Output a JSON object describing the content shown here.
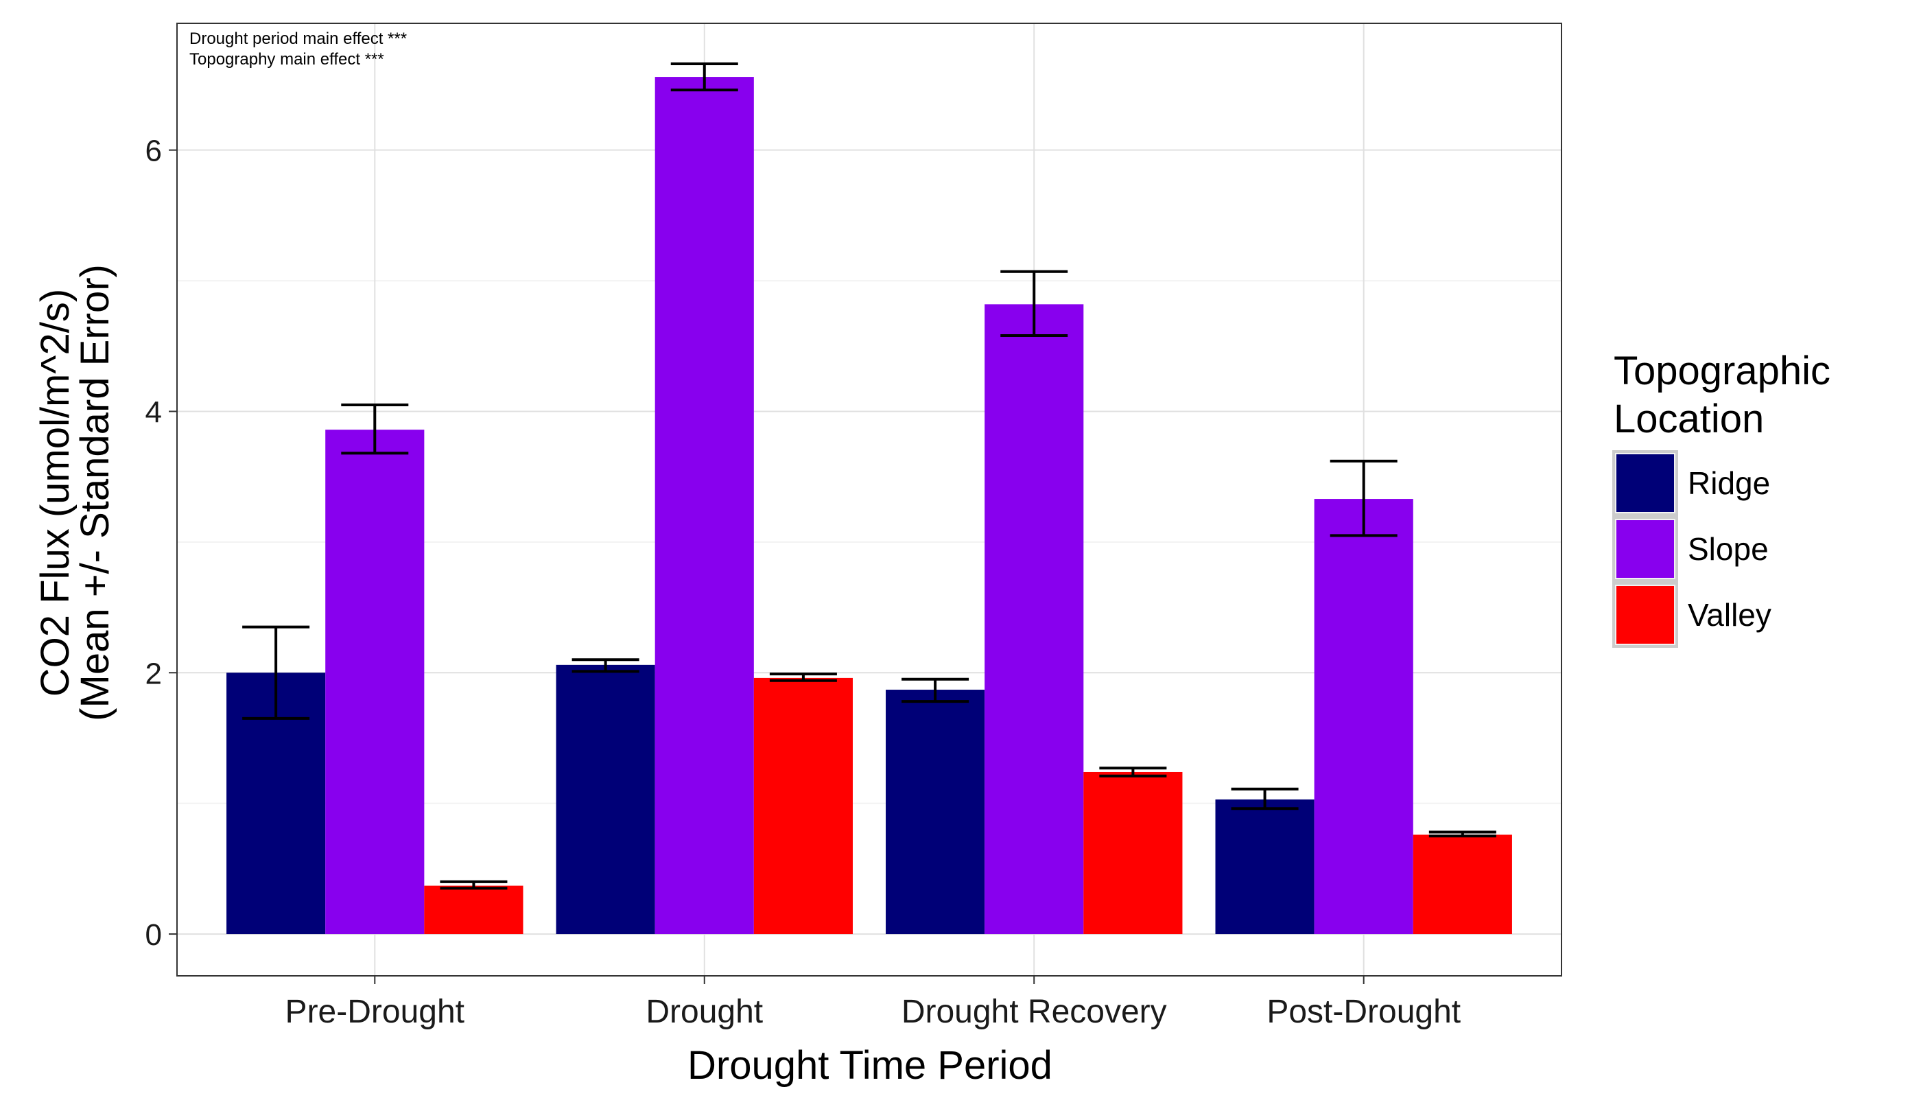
{
  "chart_data": {
    "type": "bar",
    "xlabel": "Drought Time Period",
    "ylabel_line1": "CO2 Flux (umol/m^2/s)",
    "ylabel_line2": "(Mean +/- Standard Error)",
    "categories": [
      "Pre-Drought",
      "Drought",
      "Drought Recovery",
      "Post-Drought"
    ],
    "ylim": [
      -0.32,
      6.97
    ],
    "yticks": [
      0,
      2,
      4,
      6
    ],
    "grid": true,
    "annotations": [
      "Drought period main effect  ***",
      "Topography main effect  ***"
    ],
    "legend": {
      "title_line1": "Topographic",
      "title_line2": "Location",
      "placement": "right"
    },
    "series": [
      {
        "name": "Ridge",
        "color": "#000077",
        "values": [
          2.0,
          2.06,
          1.87,
          1.03
        ],
        "err_low": [
          1.65,
          2.01,
          1.78,
          0.96
        ],
        "err_high": [
          2.35,
          2.1,
          1.95,
          1.11
        ]
      },
      {
        "name": "Slope",
        "color": "#8800ee",
        "values": [
          3.86,
          6.56,
          4.82,
          3.33
        ],
        "err_low": [
          3.68,
          6.46,
          4.58,
          3.05
        ],
        "err_high": [
          4.05,
          6.66,
          5.07,
          3.62
        ]
      },
      {
        "name": "Valley",
        "color": "#ff0000",
        "values": [
          0.37,
          1.96,
          1.24,
          0.76
        ],
        "err_low": [
          0.35,
          1.94,
          1.21,
          0.75
        ],
        "err_high": [
          0.4,
          1.99,
          1.27,
          0.78
        ]
      }
    ]
  }
}
